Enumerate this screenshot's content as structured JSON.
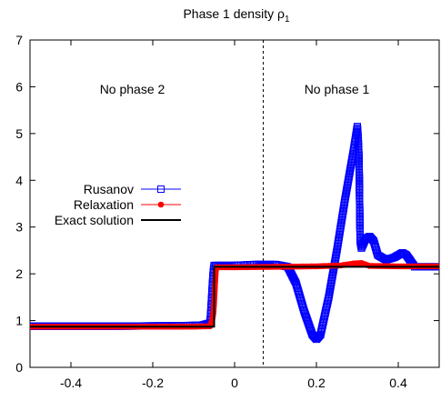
{
  "chart_data": {
    "type": "line",
    "title": "Phase 1 density ρ",
    "title_subscript": "1",
    "xlabel": "",
    "ylabel": "",
    "xlim": [
      -0.5,
      0.5
    ],
    "ylim": [
      0,
      7
    ],
    "xticks": [
      -0.4,
      -0.2,
      0,
      0.2,
      0.4
    ],
    "xtick_labels": [
      "-0.4",
      "-0.2",
      "0",
      "0.2",
      "0.4"
    ],
    "yticks": [
      0,
      1,
      2,
      3,
      4,
      5,
      6,
      7
    ],
    "ytick_labels": [
      "0",
      "1",
      "2",
      "3",
      "4",
      "5",
      "6",
      "7"
    ],
    "grid": false,
    "legend_position": "middle-left",
    "annotations": [
      {
        "text": "No phase 2",
        "x": -0.25,
        "y": 5.85
      },
      {
        "text": "No phase 1",
        "x": 0.25,
        "y": 5.85
      }
    ],
    "vertical_line": {
      "x": 0.07,
      "style": "dashed"
    },
    "series": [
      {
        "name": "Rusanov",
        "color": "#0000ff",
        "marker": "open-square",
        "points": [
          [
            -0.5,
            0.88
          ],
          [
            -0.3,
            0.88
          ],
          [
            -0.15,
            0.89
          ],
          [
            -0.08,
            0.9
          ],
          [
            -0.06,
            0.95
          ],
          [
            -0.058,
            1.2
          ],
          [
            -0.056,
            1.5
          ],
          [
            -0.054,
            1.8
          ],
          [
            -0.052,
            2.05
          ],
          [
            -0.05,
            2.18
          ],
          [
            0.0,
            2.18
          ],
          [
            0.05,
            2.2
          ],
          [
            0.1,
            2.2
          ],
          [
            0.13,
            2.15
          ],
          [
            0.15,
            1.8
          ],
          [
            0.17,
            1.2
          ],
          [
            0.19,
            0.7
          ],
          [
            0.2,
            0.6
          ],
          [
            0.21,
            0.7
          ],
          [
            0.23,
            1.5
          ],
          [
            0.25,
            2.5
          ],
          [
            0.27,
            3.6
          ],
          [
            0.29,
            4.6
          ],
          [
            0.3,
            5.15
          ],
          [
            0.302,
            4.9
          ],
          [
            0.304,
            4.5
          ],
          [
            0.305,
            3.9
          ],
          [
            0.306,
            3.2
          ],
          [
            0.307,
            2.7
          ],
          [
            0.31,
            2.55
          ],
          [
            0.32,
            2.75
          ],
          [
            0.33,
            2.8
          ],
          [
            0.34,
            2.7
          ],
          [
            0.35,
            2.4
          ],
          [
            0.37,
            2.3
          ],
          [
            0.39,
            2.35
          ],
          [
            0.41,
            2.45
          ],
          [
            0.42,
            2.4
          ],
          [
            0.44,
            2.15
          ],
          [
            0.5,
            2.15
          ]
        ]
      },
      {
        "name": "Relaxation",
        "color": "#ff0000",
        "marker": "filled-circle",
        "points": [
          [
            -0.5,
            0.87
          ],
          [
            -0.3,
            0.87
          ],
          [
            -0.1,
            0.87
          ],
          [
            -0.06,
            0.88
          ],
          [
            -0.055,
            1.0
          ],
          [
            -0.052,
            1.15
          ],
          [
            -0.05,
            1.4
          ],
          [
            -0.048,
            1.75
          ],
          [
            -0.046,
            2.05
          ],
          [
            -0.044,
            2.14
          ],
          [
            0.0,
            2.14
          ],
          [
            0.1,
            2.15
          ],
          [
            0.2,
            2.16
          ],
          [
            0.26,
            2.18
          ],
          [
            0.29,
            2.22
          ],
          [
            0.31,
            2.23
          ],
          [
            0.33,
            2.17
          ],
          [
            0.4,
            2.16
          ],
          [
            0.5,
            2.16
          ]
        ]
      },
      {
        "name": "Exact solution",
        "color": "#000000",
        "marker": "none",
        "points": [
          [
            -0.5,
            0.87
          ],
          [
            -0.05,
            0.87
          ],
          [
            -0.05,
            2.15
          ],
          [
            0.5,
            2.15
          ]
        ]
      }
    ]
  }
}
